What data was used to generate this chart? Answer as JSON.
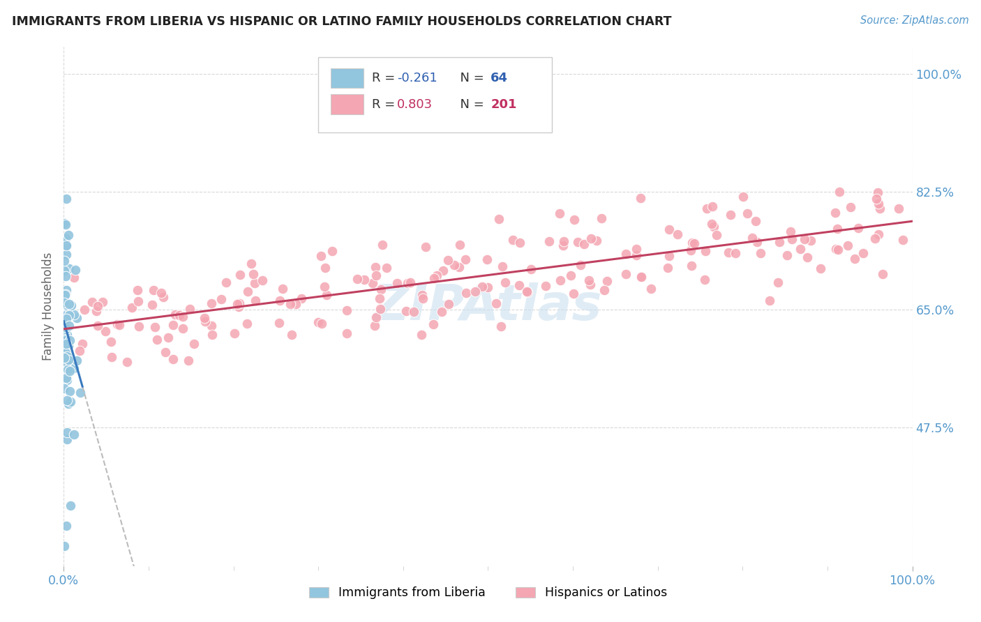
{
  "title": "IMMIGRANTS FROM LIBERIA VS HISPANIC OR LATINO FAMILY HOUSEHOLDS CORRELATION CHART",
  "source": "Source: ZipAtlas.com",
  "ylabel": "Family Households",
  "ytick_values": [
    0.475,
    0.65,
    0.825,
    1.0
  ],
  "ytick_labels": [
    "47.5%",
    "65.0%",
    "82.5%",
    "100.0%"
  ],
  "xlim": [
    0.0,
    1.0
  ],
  "ylim": [
    0.27,
    1.04
  ],
  "blue_color": "#92c5de",
  "pink_color": "#f4a6b2",
  "blue_edge_color": "#5a9fc0",
  "pink_edge_color": "#e07090",
  "blue_line_color": "#3a7abf",
  "pink_line_color": "#c04060",
  "dashed_line_color": "#bbbbbb",
  "title_color": "#222222",
  "axis_label_color": "#5599cc",
  "background_color": "#ffffff",
  "grid_color": "#d8d8d8",
  "watermark_color": "#cce0ef",
  "legend_r1_color": "#3060b0",
  "legend_r2_color": "#c03060",
  "legend_n_color": "#222222",
  "legend_box_color": "#eeeeee",
  "legend_edge_color": "#cccccc"
}
